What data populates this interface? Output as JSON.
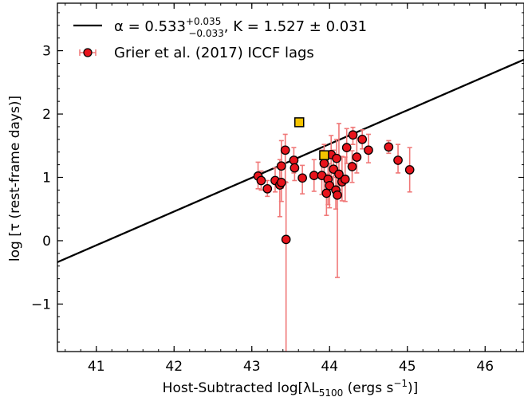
{
  "chart_data": {
    "type": "scatter",
    "xlabel_main": "Host-Subtracted log[λL",
    "xlabel_sub": "5100",
    "xlabel_unit": " (ergs s",
    "xlabel_sup": "−1",
    "xlabel_end": ")]",
    "ylabel": "log [τ  (rest-frame days)]",
    "xlim": [
      40.5,
      46.5
    ],
    "ylim": [
      -1.75,
      3.75
    ],
    "x_ticks": [
      41,
      42,
      43,
      44,
      45,
      46
    ],
    "y_ticks": [
      -1,
      0,
      1,
      2,
      3
    ],
    "x_tick_labels": [
      "41",
      "42",
      "43",
      "44",
      "45",
      "46"
    ],
    "y_tick_labels": [
      "−1",
      "0",
      "1",
      "2",
      "3"
    ],
    "legend_position": "top-left",
    "fit_line": {
      "label_prefix": "α = 0.533",
      "label_sup": "+0.035",
      "label_sub": "−0.033",
      "label_suffix": ", K = 1.527 ± 0.031",
      "alpha": 0.533,
      "K": 1.527,
      "x0": 44.0,
      "color": "#000000"
    },
    "series": [
      {
        "name": "Grier et al. (2017) ICCF lags",
        "marker": "circle",
        "face_color": "#e8141c",
        "edge_color": "#000000",
        "error_color": "#f07878",
        "points": [
          {
            "x": 43.08,
            "y": 1.02,
            "err_lo": 0.2,
            "err_hi": 0.22
          },
          {
            "x": 43.12,
            "y": 0.95,
            "err_lo": 0.15,
            "err_hi": 0.15
          },
          {
            "x": 43.2,
            "y": 0.82,
            "err_lo": 0.12,
            "err_hi": 0.13
          },
          {
            "x": 43.3,
            "y": 0.95,
            "err_lo": 0.18,
            "err_hi": 0.2
          },
          {
            "x": 43.36,
            "y": 0.88,
            "err_lo": 0.5,
            "err_hi": 0.4
          },
          {
            "x": 43.38,
            "y": 1.18,
            "err_lo": 0.35,
            "err_hi": 0.4
          },
          {
            "x": 43.38,
            "y": 0.92,
            "err_lo": 0.3,
            "err_hi": 0.3
          },
          {
            "x": 43.43,
            "y": 1.43,
            "err_lo": 0.5,
            "err_hi": 0.25
          },
          {
            "x": 43.44,
            "y": 0.02,
            "err_lo": 1.8,
            "err_hi": 0.9
          },
          {
            "x": 43.54,
            "y": 1.27,
            "err_lo": 0.2,
            "err_hi": 0.2
          },
          {
            "x": 43.55,
            "y": 1.15,
            "err_lo": 0.2,
            "err_hi": 0.18
          },
          {
            "x": 43.65,
            "y": 0.99,
            "err_lo": 0.25,
            "err_hi": 0.2
          },
          {
            "x": 43.8,
            "y": 1.03,
            "err_lo": 0.25,
            "err_hi": 0.25
          },
          {
            "x": 43.9,
            "y": 1.03,
            "err_lo": 0.3,
            "err_hi": 0.4
          },
          {
            "x": 43.93,
            "y": 1.22,
            "err_lo": 0.45,
            "err_hi": 0.3
          },
          {
            "x": 43.96,
            "y": 0.75,
            "err_lo": 0.35,
            "err_hi": 0.3
          },
          {
            "x": 43.98,
            "y": 0.97,
            "err_lo": 0.4,
            "err_hi": 0.35
          },
          {
            "x": 44.0,
            "y": 0.87,
            "err_lo": 0.35,
            "err_hi": 0.35
          },
          {
            "x": 44.02,
            "y": 1.36,
            "err_lo": 0.35,
            "err_hi": 0.3
          },
          {
            "x": 44.05,
            "y": 1.13,
            "err_lo": 0.3,
            "err_hi": 0.3
          },
          {
            "x": 44.08,
            "y": 0.8,
            "err_lo": 0.3,
            "err_hi": 0.35
          },
          {
            "x": 44.09,
            "y": 1.3,
            "err_lo": 0.3,
            "err_hi": 0.3
          },
          {
            "x": 44.1,
            "y": 0.72,
            "err_lo": 1.3,
            "err_hi": 0.3
          },
          {
            "x": 44.12,
            "y": 1.05,
            "err_lo": 0.25,
            "err_hi": 0.8
          },
          {
            "x": 44.16,
            "y": 0.93,
            "err_lo": 0.3,
            "err_hi": 0.4
          },
          {
            "x": 44.2,
            "y": 0.97,
            "err_lo": 0.35,
            "err_hi": 0.35
          },
          {
            "x": 44.22,
            "y": 1.47,
            "err_lo": 0.25,
            "err_hi": 0.3
          },
          {
            "x": 44.29,
            "y": 1.17,
            "err_lo": 0.25,
            "err_hi": 0.25
          },
          {
            "x": 44.3,
            "y": 1.67,
            "err_lo": 0.15,
            "err_hi": 0.12
          },
          {
            "x": 44.35,
            "y": 1.32,
            "err_lo": 0.25,
            "err_hi": 0.3
          },
          {
            "x": 44.42,
            "y": 1.6,
            "err_lo": 0.15,
            "err_hi": 0.15
          },
          {
            "x": 44.5,
            "y": 1.43,
            "err_lo": 0.2,
            "err_hi": 0.25
          },
          {
            "x": 44.76,
            "y": 1.48,
            "err_lo": 0.1,
            "err_hi": 0.1
          },
          {
            "x": 44.88,
            "y": 1.27,
            "err_lo": 0.2,
            "err_hi": 0.25
          },
          {
            "x": 45.03,
            "y": 1.12,
            "err_lo": 0.35,
            "err_hi": 0.35
          }
        ]
      },
      {
        "marker": "square",
        "face_color": "#f5c400",
        "edge_color": "#000000",
        "points": [
          {
            "x": 43.61,
            "y": 1.87
          },
          {
            "x": 43.93,
            "y": 1.35
          }
        ]
      }
    ]
  }
}
